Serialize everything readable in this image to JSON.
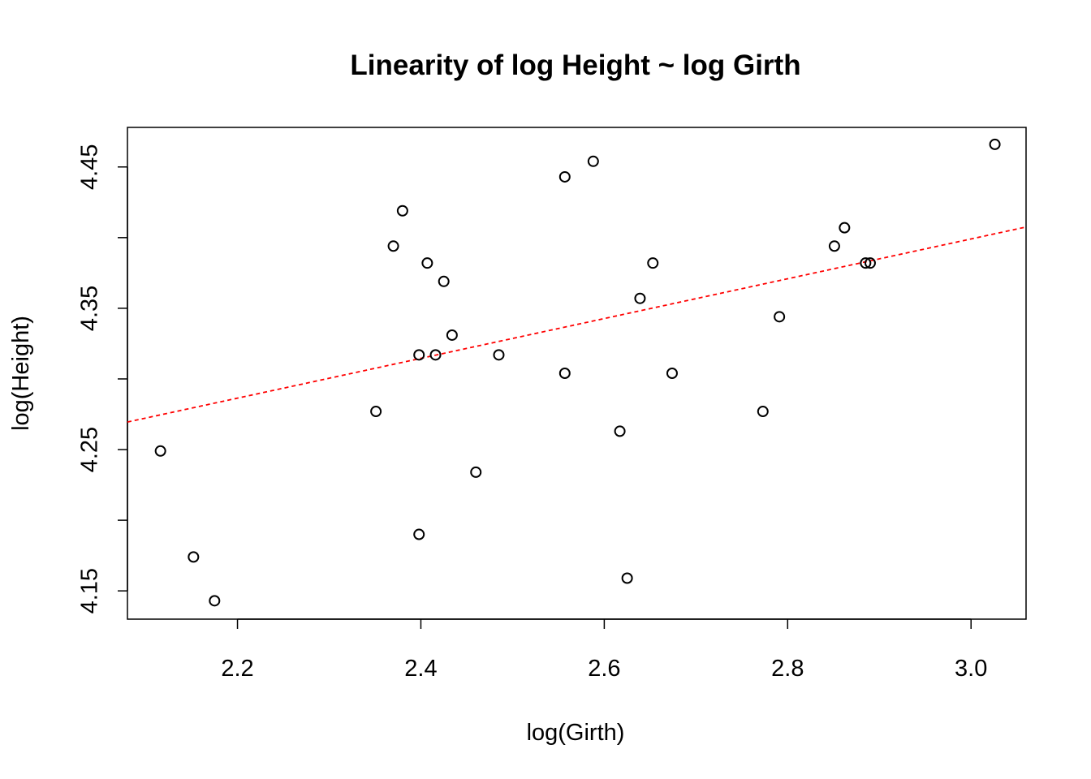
{
  "chart_data": {
    "type": "scatter",
    "title": "Linearity of log Height ~ log Girth",
    "xlabel": "log(Girth)",
    "ylabel": "log(Height)",
    "xlim": [
      2.08,
      3.06
    ],
    "ylim": [
      4.13,
      4.478
    ],
    "x_ticks": [
      2.2,
      2.4,
      2.6,
      2.8,
      3.0
    ],
    "x_tick_labels": [
      "2.2",
      "2.4",
      "2.6",
      "2.8",
      "3.0"
    ],
    "y_ticks": [
      4.15,
      4.2,
      4.25,
      4.3,
      4.35,
      4.4,
      4.45
    ],
    "y_tick_labels": [
      "4.15",
      "",
      "4.25",
      "",
      "4.35",
      "",
      "4.45"
    ],
    "grid": false,
    "legend": "none",
    "point_color": "#000000",
    "line_color": "#ff0000",
    "fit_line": {
      "style": "dashed",
      "x": [
        2.08,
        3.06
      ],
      "y": [
        4.2695,
        4.4075
      ]
    },
    "points": {
      "x": [
        2.116,
        2.152,
        2.175,
        2.351,
        2.37,
        2.38,
        2.398,
        2.398,
        2.407,
        2.416,
        2.425,
        2.434,
        2.46,
        2.485,
        2.557,
        2.557,
        2.588,
        2.617,
        2.625,
        2.639,
        2.653,
        2.674,
        2.773,
        2.791,
        2.851,
        2.862,
        2.885,
        2.89,
        3.026
      ],
      "y": [
        4.249,
        4.174,
        4.143,
        4.277,
        4.394,
        4.419,
        4.317,
        4.19,
        4.382,
        4.317,
        4.369,
        4.331,
        4.234,
        4.317,
        4.443,
        4.304,
        4.454,
        4.263,
        4.159,
        4.357,
        4.382,
        4.304,
        4.277,
        4.344,
        4.394,
        4.407,
        4.382,
        4.382,
        4.466
      ]
    }
  }
}
